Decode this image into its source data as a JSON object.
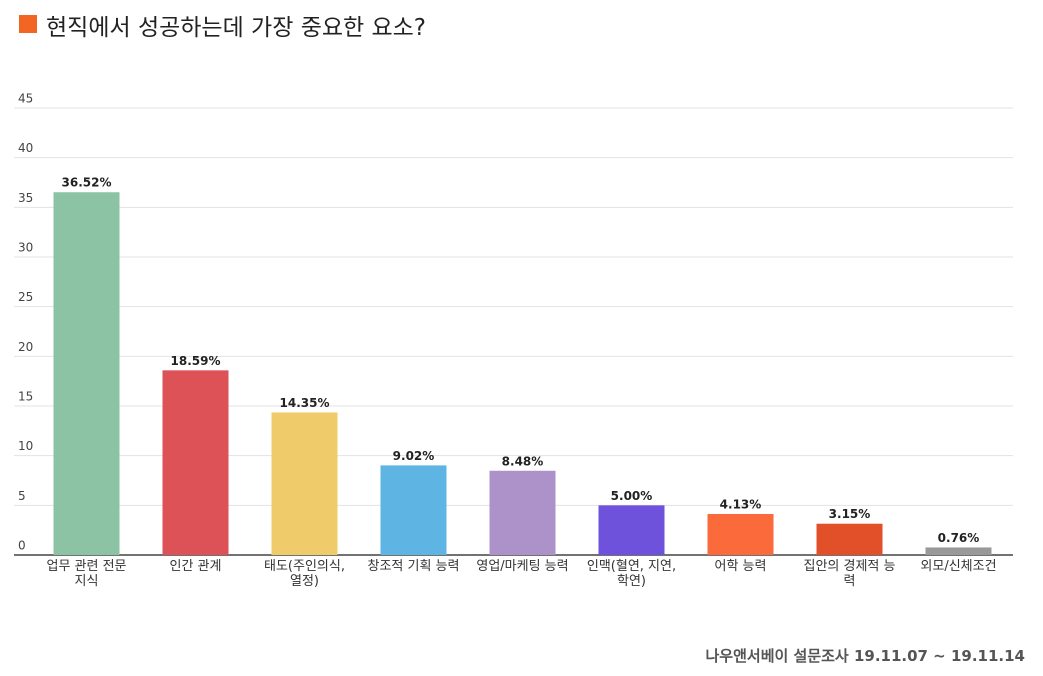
{
  "chart_data": {
    "type": "bar",
    "title": "현직에서 성공하는데 가장 중요한 요소?",
    "categories": [
      "업무 관련 전문 지식",
      "인간 관계",
      "태도(주인의식, 열정)",
      "창조적 기획 능력",
      "영업/마케팅 능력",
      "인맥(혈연, 지연, 학연)",
      "어학 능력",
      "집안의 경제적 능력",
      "외모/신체조건"
    ],
    "values": [
      36.52,
      18.59,
      14.35,
      9.02,
      8.48,
      5.0,
      4.13,
      3.15,
      0.76
    ],
    "value_labels": [
      "36.52%",
      "18.59%",
      "14.35%",
      "9.02%",
      "8.48%",
      "5.00%",
      "4.13%",
      "3.15%",
      "0.76%"
    ],
    "colors": [
      "#8cc3a5",
      "#dc5257",
      "#f0cb6a",
      "#5eb5e4",
      "#ac92c9",
      "#6e52dc",
      "#fb6a3a",
      "#e2502a",
      "#999999"
    ],
    "ylim": [
      0,
      45
    ],
    "yticks": [
      0,
      5,
      10,
      15,
      20,
      25,
      30,
      35,
      40,
      45
    ],
    "grid": true,
    "source": "나우앤서베이 설문조사 19.11.07 ~ 19.11.14"
  }
}
